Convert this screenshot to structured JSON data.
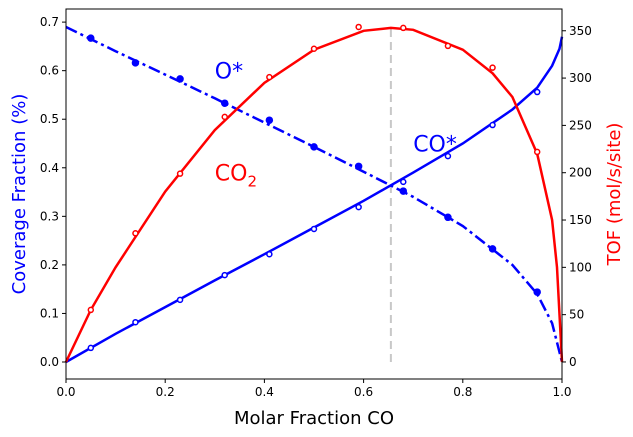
{
  "chart_data": {
    "type": "line",
    "xlabel": "Molar Fraction CO",
    "ylabel_left": "Coverage Fraction (%)",
    "ylabel_right": "TOF (mol/s/site)",
    "xlim": [
      0,
      1.0
    ],
    "ylim_left": [
      -0.035,
      0.727
    ],
    "ylim_right": [
      -18,
      373
    ],
    "xticks": [
      "0.0",
      "0.2",
      "0.4",
      "0.6",
      "0.8",
      "1.0"
    ],
    "yticks_left": [
      "0.0",
      "0.1",
      "0.2",
      "0.3",
      "0.4",
      "0.5",
      "0.6",
      "0.7"
    ],
    "yticks_right": [
      "0",
      "50",
      "100",
      "150",
      "200",
      "250",
      "300",
      "350"
    ],
    "grid": false,
    "colors": {
      "coverage": "#0000ff",
      "tof": "#ff0000",
      "optimum_line": "#c8c8c8",
      "left_axis_label": "#0000ff",
      "right_axis_label": "#ff0000"
    },
    "optimum_x": 0.655,
    "annotations": [
      {
        "text": "O*",
        "x": 0.3,
        "y": 0.6,
        "axis": "left",
        "color": "#0000ff"
      },
      {
        "text": "CO",
        "sub": "2",
        "x": 0.3,
        "y": 0.39,
        "axis": "left",
        "color": "#ff0000"
      },
      {
        "text": "CO*",
        "x": 0.7,
        "y": 0.45,
        "axis": "left",
        "color": "#0000ff"
      }
    ],
    "series": [
      {
        "name": "O*",
        "axis": "left",
        "marker": "filled",
        "line": "dashdot",
        "x": [
          0.05,
          0.14,
          0.23,
          0.32,
          0.41,
          0.5,
          0.59,
          0.68,
          0.77,
          0.86,
          0.95
        ],
        "y": [
          0.667,
          0.616,
          0.583,
          0.533,
          0.498,
          0.443,
          0.403,
          0.352,
          0.298,
          0.233,
          0.144
        ],
        "fit_x": [
          0,
          0.1,
          0.2,
          0.3,
          0.4,
          0.5,
          0.6,
          0.7,
          0.8,
          0.9,
          0.95,
          0.98,
          1.0
        ],
        "fit_y": [
          0.69,
          0.64,
          0.592,
          0.543,
          0.493,
          0.443,
          0.392,
          0.34,
          0.28,
          0.2,
          0.14,
          0.08,
          0.0
        ]
      },
      {
        "name": "CO*",
        "axis": "left",
        "marker": "open",
        "line": "solid",
        "x": [
          0.05,
          0.14,
          0.23,
          0.32,
          0.41,
          0.5,
          0.59,
          0.68,
          0.77,
          0.86,
          0.95
        ],
        "y": [
          0.029,
          0.082,
          0.128,
          0.179,
          0.222,
          0.274,
          0.319,
          0.371,
          0.424,
          0.488,
          0.556
        ],
        "fit_x": [
          0,
          0.1,
          0.2,
          0.3,
          0.4,
          0.5,
          0.6,
          0.7,
          0.8,
          0.9,
          0.95,
          0.98,
          0.995,
          1.0
        ],
        "fit_y": [
          0,
          0.058,
          0.113,
          0.168,
          0.222,
          0.277,
          0.332,
          0.39,
          0.45,
          0.52,
          0.565,
          0.61,
          0.645,
          0.67
        ]
      },
      {
        "name": "CO2",
        "axis": "right",
        "marker": "open",
        "line": "solid",
        "x": [
          0.05,
          0.14,
          0.23,
          0.32,
          0.41,
          0.5,
          0.59,
          0.68,
          0.77,
          0.86,
          0.95
        ],
        "y": [
          55,
          136,
          199,
          259,
          301,
          331,
          354,
          353,
          334,
          311,
          222
        ],
        "fit_x": [
          0,
          0.05,
          0.1,
          0.2,
          0.3,
          0.4,
          0.5,
          0.6,
          0.655,
          0.7,
          0.8,
          0.86,
          0.9,
          0.95,
          0.98,
          0.99,
          1.0
        ],
        "fit_y": [
          0,
          55,
          100,
          180,
          245,
          295,
          330,
          350,
          353,
          351,
          330,
          305,
          280,
          220,
          150,
          100,
          0
        ]
      }
    ]
  }
}
